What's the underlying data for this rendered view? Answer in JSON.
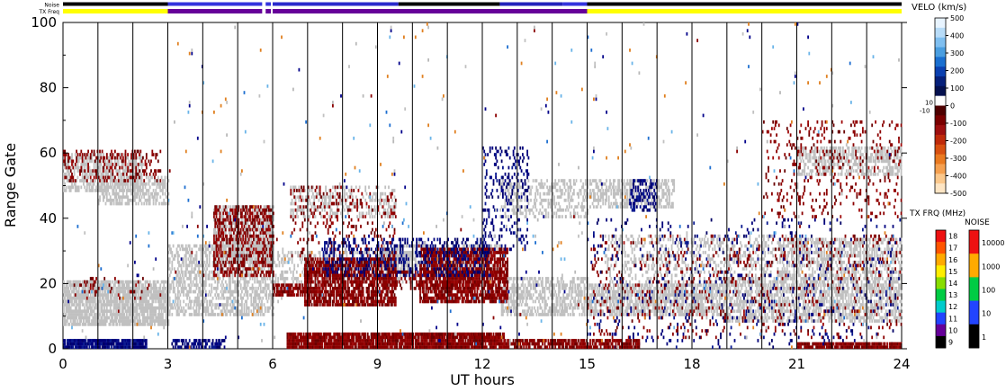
{
  "top_strips": {
    "noise_label": "Noise",
    "txfreq_label": "TX Freq",
    "noise_segments": [
      {
        "from": 0,
        "to": 3,
        "color": "#000000"
      },
      {
        "from": 3,
        "to": 5.7,
        "color": "#3333dd"
      },
      {
        "from": 5.8,
        "to": 5.95,
        "color": "#3333dd"
      },
      {
        "from": 6.0,
        "to": 9.6,
        "color": "#2a2acc"
      },
      {
        "from": 9.6,
        "to": 12.5,
        "color": "#000000"
      },
      {
        "from": 12.5,
        "to": 14.3,
        "color": "#2222bb"
      },
      {
        "from": 14.3,
        "to": 15.0,
        "color": "#3333dd"
      },
      {
        "from": 15,
        "to": 24,
        "color": "#000000"
      }
    ],
    "txfreq_segments": [
      {
        "from": 0,
        "to": 3,
        "color": "#ffff00"
      },
      {
        "from": 3,
        "to": 5.7,
        "color": "#660099"
      },
      {
        "from": 5.8,
        "to": 5.95,
        "color": "#660099"
      },
      {
        "from": 6.0,
        "to": 15,
        "color": "#660099"
      },
      {
        "from": 15,
        "to": 24,
        "color": "#ffff00"
      }
    ]
  },
  "chart_data": {
    "type": "heatmap",
    "xlabel": "UT hours",
    "ylabel": "Range Gate",
    "xlim": [
      0,
      24
    ],
    "ylim": [
      0,
      100
    ],
    "x_ticks": [
      0,
      3,
      6,
      9,
      12,
      15,
      18,
      21,
      24
    ],
    "y_ticks": [
      0,
      20,
      40,
      60,
      80,
      100
    ],
    "vertical_grid_lines": [
      1,
      2,
      3,
      4,
      5,
      6,
      7,
      8,
      9,
      10,
      11,
      12,
      13,
      14,
      15,
      16,
      17,
      18,
      19,
      20,
      21,
      22,
      23
    ],
    "ground_scatter_color": "#c0c0c0",
    "regions": [
      {
        "kind": "ground",
        "t0": 0.0,
        "t1": 3.0,
        "g0": 7,
        "g1": 21,
        "density": 0.8
      },
      {
        "kind": "ground",
        "t0": 0.0,
        "t1": 2.3,
        "g0": 48,
        "g1": 60,
        "density": 0.55
      },
      {
        "kind": "ground",
        "t0": 1.0,
        "t1": 3.0,
        "g0": 44,
        "g1": 53,
        "density": 0.55
      },
      {
        "kind": "ground",
        "t0": 3.0,
        "t1": 6.0,
        "g0": 10,
        "g1": 32,
        "density": 0.5
      },
      {
        "kind": "ground",
        "t0": 4.3,
        "t1": 6.0,
        "g0": 26,
        "g1": 44,
        "density": 0.6
      },
      {
        "kind": "ground",
        "t0": 6.0,
        "t1": 10.0,
        "g0": 20,
        "g1": 30,
        "density": 0.35
      },
      {
        "kind": "ground",
        "t0": 6.5,
        "t1": 9.5,
        "g0": 40,
        "g1": 50,
        "density": 0.35
      },
      {
        "kind": "ground",
        "t0": 9.0,
        "t1": 12.5,
        "g0": 24,
        "g1": 32,
        "density": 0.45
      },
      {
        "kind": "ground",
        "t0": 12.5,
        "t1": 15.0,
        "g0": 10,
        "g1": 22,
        "density": 0.55
      },
      {
        "kind": "ground",
        "t0": 12.5,
        "t1": 15.0,
        "g0": 40,
        "g1": 52,
        "density": 0.35
      },
      {
        "kind": "ground",
        "t0": 15.0,
        "t1": 19.0,
        "g0": 10,
        "g1": 20,
        "density": 0.65
      },
      {
        "kind": "ground",
        "t0": 15.0,
        "t1": 17.5,
        "g0": 43,
        "g1": 52,
        "density": 0.5
      },
      {
        "kind": "ground",
        "t0": 15.5,
        "t1": 21.0,
        "g0": 20,
        "g1": 35,
        "density": 0.25
      },
      {
        "kind": "ground",
        "t0": 19.0,
        "t1": 24.0,
        "g0": 8,
        "g1": 22,
        "density": 0.55
      },
      {
        "kind": "ground",
        "t0": 20.5,
        "t1": 24.0,
        "g0": 22,
        "g1": 34,
        "density": 0.45
      },
      {
        "kind": "ground",
        "t0": 21.0,
        "t1": 24.0,
        "g0": 53,
        "g1": 62,
        "density": 0.5
      },
      {
        "kind": "neg",
        "t0": 0.0,
        "t1": 2.8,
        "g0": 51,
        "g1": 61,
        "density": 0.22
      },
      {
        "kind": "neg",
        "t0": 0.3,
        "t1": 2.5,
        "g0": 15,
        "g1": 22,
        "density": 0.12
      },
      {
        "kind": "neg",
        "t0": 4.3,
        "t1": 6.0,
        "g0": 22,
        "g1": 44,
        "density": 0.4
      },
      {
        "kind": "neg",
        "t0": 6.9,
        "t1": 9.5,
        "g0": 13,
        "g1": 28,
        "density": 0.75
      },
      {
        "kind": "neg",
        "t0": 6.0,
        "t1": 7.0,
        "g0": 16,
        "g1": 20,
        "density": 0.8
      },
      {
        "kind": "neg",
        "t0": 10.2,
        "t1": 12.7,
        "g0": 14,
        "g1": 31,
        "density": 0.75
      },
      {
        "kind": "neg",
        "t0": 6.5,
        "t1": 9.5,
        "g0": 28,
        "g1": 50,
        "density": 0.12
      },
      {
        "kind": "neg",
        "t0": 9.5,
        "t1": 12.0,
        "g0": 18,
        "g1": 24,
        "density": 0.35
      },
      {
        "kind": "neg",
        "t0": 15.0,
        "t1": 24.0,
        "g0": 3,
        "g1": 35,
        "density": 0.07
      },
      {
        "kind": "neg",
        "t0": 20.0,
        "t1": 24.0,
        "g0": 40,
        "g1": 70,
        "density": 0.1
      },
      {
        "kind": "pos",
        "t0": 0.0,
        "t1": 2.4,
        "g0": 0,
        "g1": 3,
        "density": 0.9
      },
      {
        "kind": "pos",
        "t0": 3.1,
        "t1": 4.6,
        "g0": 0,
        "g1": 3,
        "density": 0.55
      },
      {
        "kind": "pos",
        "t0": 7.3,
        "t1": 12.2,
        "g0": 22,
        "g1": 34,
        "density": 0.25
      },
      {
        "kind": "pos",
        "t0": 12.0,
        "t1": 13.3,
        "g0": 30,
        "g1": 62,
        "density": 0.18
      },
      {
        "kind": "pos",
        "t0": 16.2,
        "t1": 17.0,
        "g0": 42,
        "g1": 52,
        "density": 0.35
      },
      {
        "kind": "pos",
        "t0": 15.0,
        "t1": 24.0,
        "g0": 0,
        "g1": 40,
        "density": 0.04
      },
      {
        "kind": "neg_band",
        "t0": 6.4,
        "t1": 12.6,
        "g0": 0,
        "g1": 5,
        "density": 0.9
      },
      {
        "kind": "neg_band",
        "t0": 12.6,
        "t1": 16.5,
        "g0": 0,
        "g1": 3,
        "density": 0.75
      },
      {
        "kind": "neg_band",
        "t0": 21.0,
        "t1": 24.0,
        "g0": 0,
        "g1": 2,
        "density": 0.85
      },
      {
        "kind": "scatter",
        "t0": 3.0,
        "t1": 24.0,
        "g0": 40,
        "g1": 100,
        "density": 0.006
      },
      {
        "kind": "scatter",
        "t0": 0.0,
        "t1": 24.0,
        "g0": 0,
        "g1": 40,
        "density": 0.012
      }
    ],
    "velocity_scale": {
      "title": "VELO (km/s)",
      "tick_labels": [
        "500",
        "400",
        "300",
        "200",
        "100",
        "0",
        "-100",
        "-200",
        "-300",
        "-400",
        "-500"
      ],
      "side_labels": [
        "10",
        "-10"
      ],
      "colors_top_to_bottom": [
        "#e8f4ff",
        "#b8dcf8",
        "#7fbff0",
        "#4a9ee0",
        "#1a6fd0",
        "#0b40b0",
        "#06207a",
        "#04104e",
        "#ffffff",
        "#4e0000",
        "#7a0000",
        "#9e0f0f",
        "#bf2a0a",
        "#d85010",
        "#ea7a20",
        "#f5a050",
        "#fbc88c",
        "#fde5c4"
      ]
    },
    "txfreq_scale": {
      "title": "TX FRQ (MHz)",
      "tick_labels": [
        "18",
        "17",
        "16",
        "15",
        "14",
        "13",
        "12",
        "11",
        "10",
        "9"
      ],
      "colors_top_to_bottom": [
        "#ee1111",
        "#ff5500",
        "#ffaa00",
        "#ffee00",
        "#88dd00",
        "#00cc44",
        "#00cccc",
        "#2244ff",
        "#660099",
        "#000000"
      ]
    },
    "noise_scale": {
      "title": "NOISE",
      "tick_labels": [
        "10000",
        "1000",
        "100",
        "10",
        "1"
      ],
      "colors_top_to_bottom": [
        "#ee1111",
        "#ffaa00",
        "#00cc44",
        "#2244ff",
        "#000000"
      ]
    }
  }
}
